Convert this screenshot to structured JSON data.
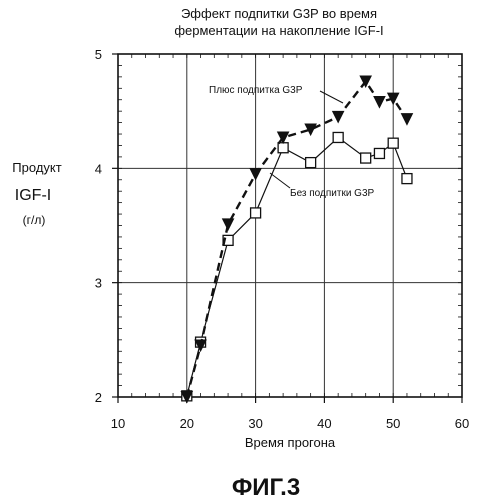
{
  "chart_data": {
    "type": "line",
    "title_lines": [
      "Эффект подпитки G3P во время",
      "ферментации на накопление IGF-I"
    ],
    "ylabel_lines": [
      "Продукт",
      "IGF-I",
      "(г/л)"
    ],
    "xlabel": "Время прогона",
    "xlim": [
      10,
      60
    ],
    "ylim": [
      2,
      5
    ],
    "x_ticks": [
      "10",
      "20",
      "30",
      "40",
      "50",
      "60"
    ],
    "y_ticks": [
      "2",
      "3",
      "4",
      "5"
    ],
    "grid": true,
    "series": [
      {
        "name": "Плюс подпитка G3P",
        "marker": "filled-triangle-down",
        "line": "dashed",
        "color": "#111111",
        "x": [
          20,
          22,
          26,
          30,
          34,
          38,
          42,
          46,
          48,
          50,
          52
        ],
        "y": [
          2.0,
          2.45,
          3.51,
          3.95,
          4.27,
          4.34,
          4.45,
          4.76,
          4.58,
          4.61,
          4.43
        ]
      },
      {
        "name": "Без подпитки G3P",
        "marker": "open-square",
        "line": "solid",
        "color": "#111111",
        "x": [
          20,
          22,
          26,
          30,
          34,
          38,
          42,
          46,
          48,
          50,
          52
        ],
        "y": [
          2.01,
          2.48,
          3.37,
          3.61,
          4.18,
          4.05,
          4.27,
          4.09,
          4.13,
          4.22,
          3.91
        ]
      }
    ]
  },
  "figure_caption": "ФИГ.3"
}
